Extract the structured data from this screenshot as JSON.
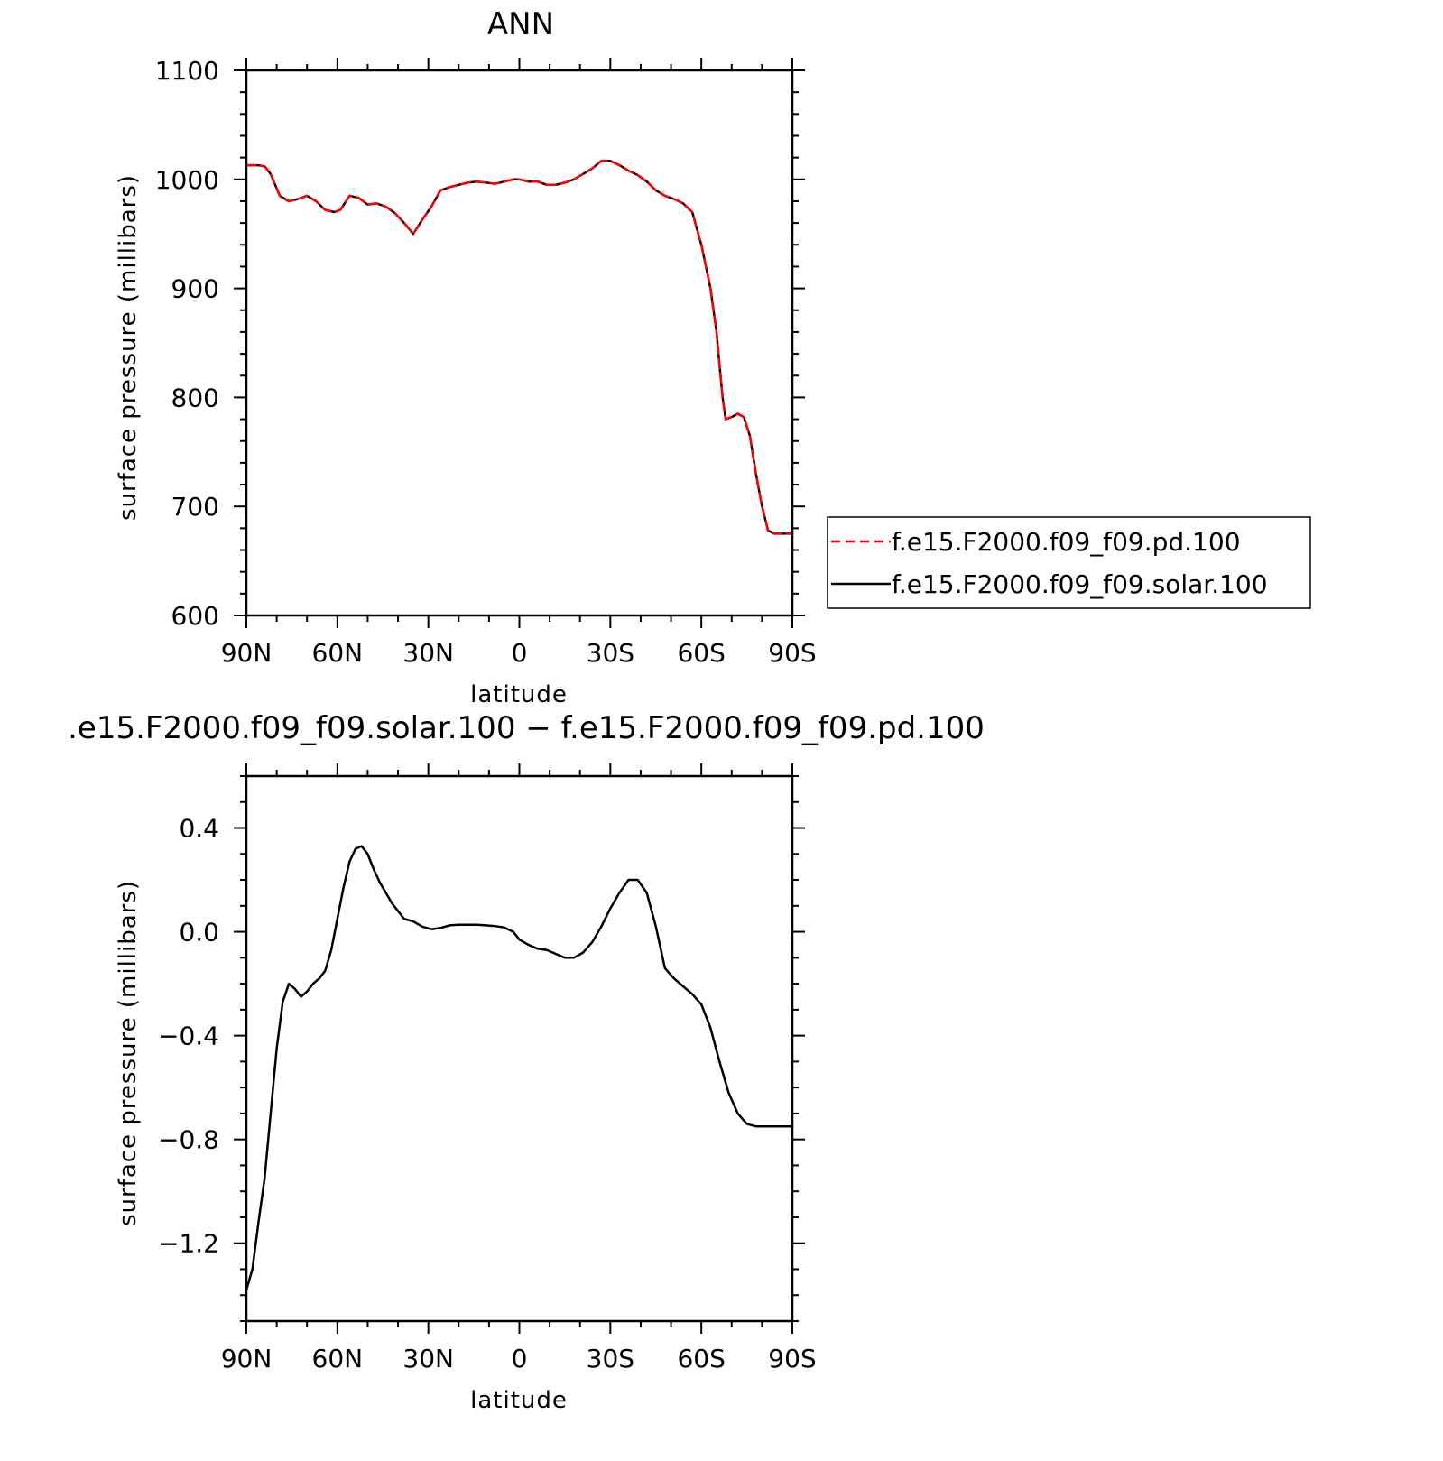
{
  "chart_data": [
    {
      "type": "line",
      "title": "ANN",
      "xlabel": "latitude",
      "ylabel": "surface pressure (millibars)",
      "xlim": [
        90,
        -90
      ],
      "ylim": [
        600,
        1100
      ],
      "x_ticks": [
        "90N",
        "60N",
        "30N",
        "0",
        "30S",
        "60S",
        "90S"
      ],
      "y_ticks": [
        "600",
        "700",
        "800",
        "900",
        "1000",
        "1100"
      ],
      "legend_position": "right",
      "x": [
        90,
        86,
        84,
        82,
        79,
        76,
        73,
        70,
        67,
        64,
        61,
        59,
        56,
        53,
        50,
        47,
        44,
        41,
        38,
        35,
        32,
        29,
        26,
        23,
        20,
        17,
        14,
        11,
        8,
        5,
        2,
        0,
        -3,
        -6,
        -9,
        -12,
        -15,
        -18,
        -21,
        -24,
        -27,
        -30,
        -33,
        -36,
        -39,
        -42,
        -45,
        -48,
        -51,
        -54,
        -57,
        -60,
        -63,
        -65,
        -66,
        -67,
        -68,
        -70,
        -72,
        -74,
        -76,
        -78,
        -80,
        -82,
        -84,
        -86,
        -88,
        -90
      ],
      "series": [
        {
          "name": "f.e15.F2000.f09_f09.pd.100",
          "color": "#ff0000",
          "dash": "dashed",
          "values": [
            1013,
            1013,
            1012,
            1005,
            985,
            980,
            982,
            985,
            980,
            972,
            970,
            972,
            985,
            983,
            977,
            978,
            975,
            969,
            960,
            950,
            963,
            975,
            990,
            993,
            995,
            997,
            998,
            997,
            996,
            998,
            1000,
            1000,
            998,
            998,
            995,
            995,
            997,
            1000,
            1005,
            1010,
            1017,
            1017,
            1013,
            1008,
            1004,
            998,
            990,
            985,
            982,
            978,
            970,
            940,
            900,
            860,
            830,
            800,
            780,
            782,
            785,
            782,
            765,
            730,
            700,
            678,
            675,
            675,
            675,
            675
          ]
        },
        {
          "name": "f.e15.F2000.f09_f09.solar.100",
          "color": "#000000",
          "dash": "solid",
          "values": [
            1013,
            1013,
            1012,
            1005,
            985,
            980,
            982,
            985,
            980,
            972,
            970,
            972,
            985,
            983,
            977,
            978,
            975,
            969,
            960,
            950,
            963,
            975,
            990,
            993,
            995,
            997,
            998,
            997,
            996,
            998,
            1000,
            1000,
            998,
            998,
            995,
            995,
            997,
            1000,
            1005,
            1010,
            1017,
            1017,
            1013,
            1008,
            1004,
            998,
            990,
            985,
            982,
            978,
            970,
            940,
            900,
            860,
            830,
            800,
            780,
            782,
            785,
            782,
            765,
            730,
            700,
            678,
            675,
            675,
            675,
            675
          ]
        }
      ]
    },
    {
      "type": "line",
      "title": ".e15.F2000.f09_f09.solar.100 − f.e15.F2000.f09_f09.pd.100",
      "xlabel": "latitude",
      "ylabel": "surface pressure (millibars)",
      "xlim": [
        90,
        -90
      ],
      "ylim": [
        -1.5,
        0.6
      ],
      "x_ticks": [
        "90N",
        "60N",
        "30N",
        "0",
        "30S",
        "60S",
        "90S"
      ],
      "y_ticks": [
        "−1.2",
        "−0.8",
        "−0.4",
        "0.0",
        "0.4"
      ],
      "y_tick_values": [
        -1.2,
        -0.8,
        -0.4,
        0.0,
        0.4
      ],
      "x": [
        90,
        88,
        86,
        84,
        82,
        80,
        78,
        76,
        74,
        72,
        70,
        68,
        66,
        64,
        62,
        60,
        58,
        56,
        54,
        52,
        50,
        48,
        46,
        44,
        42,
        40,
        38,
        35,
        32,
        29,
        26,
        23,
        20,
        17,
        14,
        11,
        8,
        5,
        2,
        0,
        -3,
        -6,
        -9,
        -12,
        -15,
        -18,
        -21,
        -24,
        -27,
        -30,
        -33,
        -36,
        -39,
        -42,
        -45,
        -48,
        -51,
        -54,
        -57,
        -60,
        -63,
        -66,
        -69,
        -72,
        -75,
        -78,
        -81,
        -84,
        -87,
        -90
      ],
      "series": [
        {
          "name": "",
          "color": "#000000",
          "values": [
            -1.38,
            -1.3,
            -1.12,
            -0.95,
            -0.7,
            -0.45,
            -0.27,
            -0.2,
            -0.22,
            -0.25,
            -0.23,
            -0.2,
            -0.18,
            -0.15,
            -0.07,
            0.05,
            0.17,
            0.27,
            0.32,
            0.33,
            0.3,
            0.24,
            0.19,
            0.15,
            0.11,
            0.08,
            0.05,
            0.04,
            0.02,
            0.01,
            0.015,
            0.025,
            0.027,
            0.027,
            0.027,
            0.025,
            0.022,
            0.017,
            0.0,
            -0.03,
            -0.05,
            -0.065,
            -0.07,
            -0.085,
            -0.1,
            -0.1,
            -0.08,
            -0.04,
            0.02,
            0.09,
            0.15,
            0.2,
            0.2,
            0.15,
            0.02,
            -0.14,
            -0.18,
            -0.21,
            -0.24,
            -0.28,
            -0.37,
            -0.5,
            -0.62,
            -0.7,
            -0.74,
            -0.75,
            -0.75,
            -0.75,
            -0.75,
            -0.75
          ]
        }
      ]
    }
  ]
}
